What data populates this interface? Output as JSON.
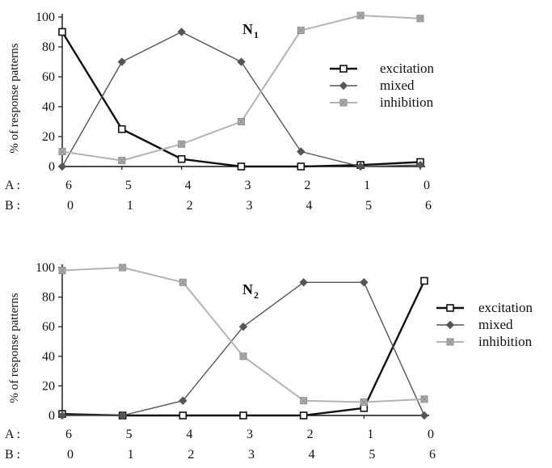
{
  "chart_data": [
    {
      "type": "line",
      "title": "N",
      "title_subscript": "1",
      "ylabel": "% of response patterns",
      "ylim": [
        0,
        100
      ],
      "yticks": [
        0,
        20,
        40,
        60,
        80,
        100
      ],
      "x": [
        0,
        1,
        2,
        3,
        4,
        5,
        6
      ],
      "x_label_rows": [
        {
          "name": "A :",
          "values": [
            "6",
            "5",
            "4",
            "3",
            "2",
            "1",
            "0"
          ]
        },
        {
          "name": "B :",
          "values": [
            "0",
            "1",
            "2",
            "3",
            "4",
            "5",
            "6"
          ]
        }
      ],
      "legend_position": "right",
      "series": [
        {
          "name": "excitation",
          "color": "#111111",
          "marker": "square",
          "width": 2.4,
          "values": [
            90,
            25,
            5,
            0,
            0,
            1,
            3
          ]
        },
        {
          "name": "mixed",
          "color": "#555555",
          "marker": "diamond",
          "width": 1.4,
          "values": [
            0,
            70,
            90,
            70,
            10,
            0,
            1
          ]
        },
        {
          "name": "inhibition",
          "color": "#b3b3b3",
          "marker": "cross",
          "width": 2.0,
          "values": [
            10,
            4,
            15,
            30,
            91,
            101,
            99
          ]
        }
      ]
    },
    {
      "type": "line",
      "title": "N",
      "title_subscript": "2",
      "ylabel": "% of response patterns",
      "ylim": [
        0,
        100
      ],
      "yticks": [
        0,
        20,
        40,
        60,
        80,
        100
      ],
      "x": [
        0,
        1,
        2,
        3,
        4,
        5,
        6
      ],
      "x_label_rows": [
        {
          "name": "A :",
          "values": [
            "6",
            "5",
            "4",
            "3",
            "2",
            "1",
            "0"
          ]
        },
        {
          "name": "B :",
          "values": [
            "0",
            "1",
            "2",
            "3",
            "4",
            "5",
            "6"
          ]
        }
      ],
      "legend_position": "right",
      "series": [
        {
          "name": "excitation",
          "color": "#111111",
          "marker": "square",
          "width": 2.4,
          "values": [
            1,
            0,
            0,
            0,
            0,
            5,
            91
          ]
        },
        {
          "name": "mixed",
          "color": "#555555",
          "marker": "diamond",
          "width": 1.4,
          "values": [
            0,
            0,
            10,
            60,
            90,
            90,
            0
          ]
        },
        {
          "name": "inhibition",
          "color": "#b3b3b3",
          "marker": "cross",
          "width": 2.0,
          "values": [
            98,
            100,
            90,
            40,
            10,
            9,
            11
          ]
        }
      ]
    }
  ]
}
